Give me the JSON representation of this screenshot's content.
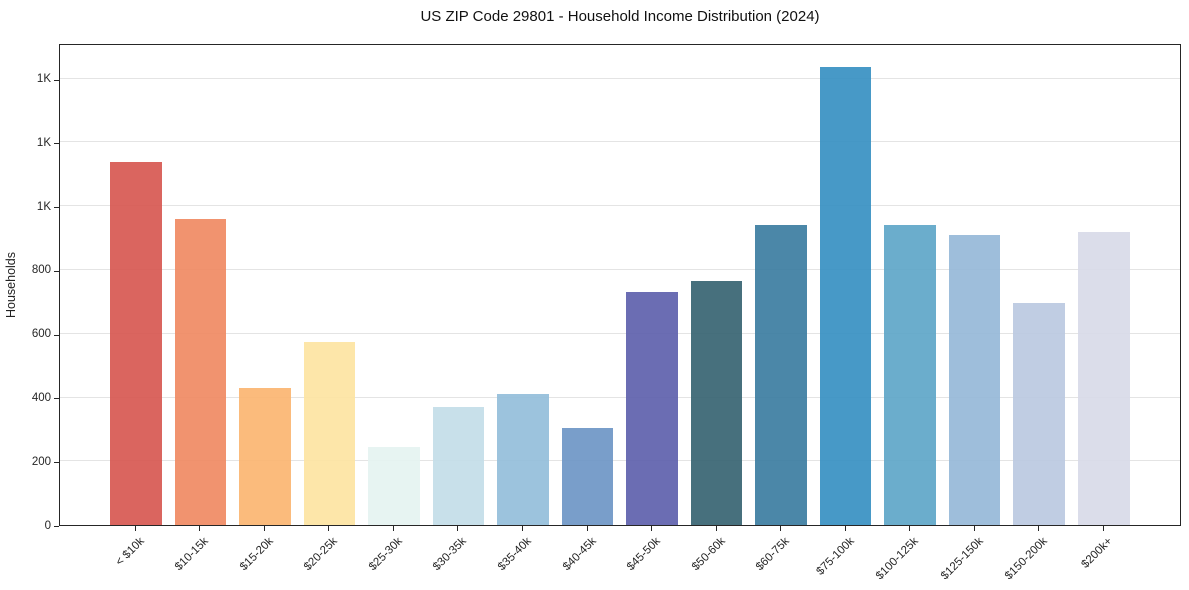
{
  "chart_data": {
    "type": "bar",
    "title": "US ZIP Code 29801 - Household Income Distribution (2024)",
    "xlabel": "",
    "ylabel": "Households",
    "categories": [
      "< $10k",
      "$10-15k",
      "$15-20k",
      "$20-25k",
      "$25-30k",
      "$30-35k",
      "$35-40k",
      "$40-45k",
      "$45-50k",
      "$50-60k",
      "$60-75k",
      "$75-100k",
      "$100-125k",
      "$125-150k",
      "$150-200k",
      "$200k+"
    ],
    "values": [
      1140,
      960,
      430,
      575,
      245,
      370,
      410,
      305,
      730,
      765,
      940,
      1437,
      940,
      910,
      695,
      920
    ],
    "bar_colors": [
      "#d6544e",
      "#f0875f",
      "#fbb46e",
      "#fde3a0",
      "#e4f3f1",
      "#c2dde8",
      "#91bcd9",
      "#6a93c4",
      "#5b5dab",
      "#33606f",
      "#377a9e",
      "#338ec1",
      "#5ba4c7",
      "#94b7d7",
      "#b9c8e0",
      "#d7d9e8"
    ],
    "ylim": [
      0,
      1512
    ],
    "yticks": {
      "values": [
        0,
        200,
        400,
        600,
        800,
        1000,
        1200,
        1400
      ],
      "labels": [
        "0",
        "200",
        "400",
        "600",
        "800",
        "1K",
        "1K",
        "1K"
      ]
    },
    "grid": "horizontal",
    "legend": "none"
  }
}
